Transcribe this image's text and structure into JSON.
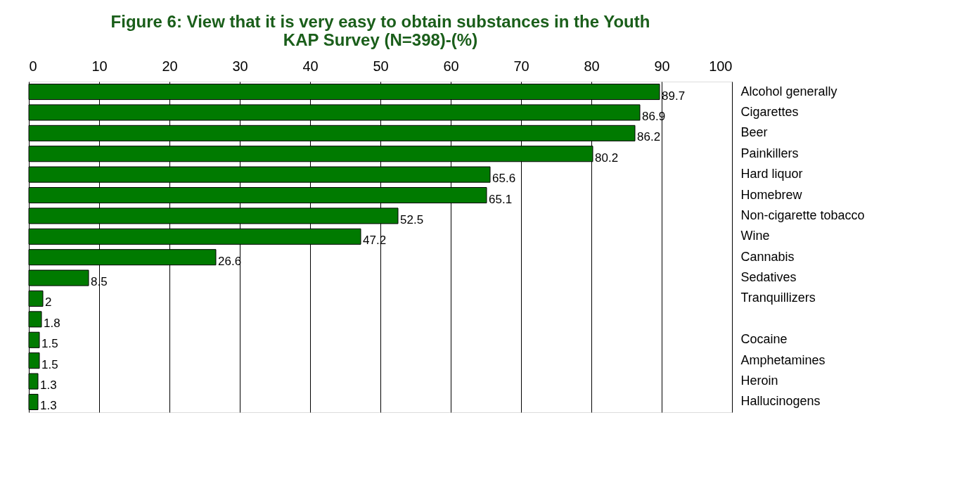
{
  "chart_data": {
    "type": "bar",
    "orientation": "horizontal",
    "title": "Figure 6: View that it is very easy to obtain substances in the Youth KAP Survey (N=398)-(%)",
    "categories": [
      "Alcohol generally",
      "Cigarettes",
      "Beer",
      "Painkillers",
      "Hard liquor",
      "Homebrew",
      "Non-cigarette tobacco",
      "Wine",
      "Cannabis",
      "Sedatives",
      "Tranquillizers",
      null,
      "Cocaine",
      "Amphetamines",
      "Heroin",
      "Hallucinogens"
    ],
    "values": [
      89.7,
      86.9,
      86.2,
      80.2,
      65.6,
      65.1,
      52.5,
      47.2,
      26.6,
      8.5,
      2,
      1.8,
      1.5,
      1.5,
      1.3,
      1.3
    ],
    "color": "#007a00",
    "xlim": [
      0,
      100
    ],
    "xticks": [
      0,
      10,
      20,
      30,
      40,
      50,
      60,
      70,
      80,
      90,
      100
    ],
    "grid": "x",
    "data_labels": true
  }
}
